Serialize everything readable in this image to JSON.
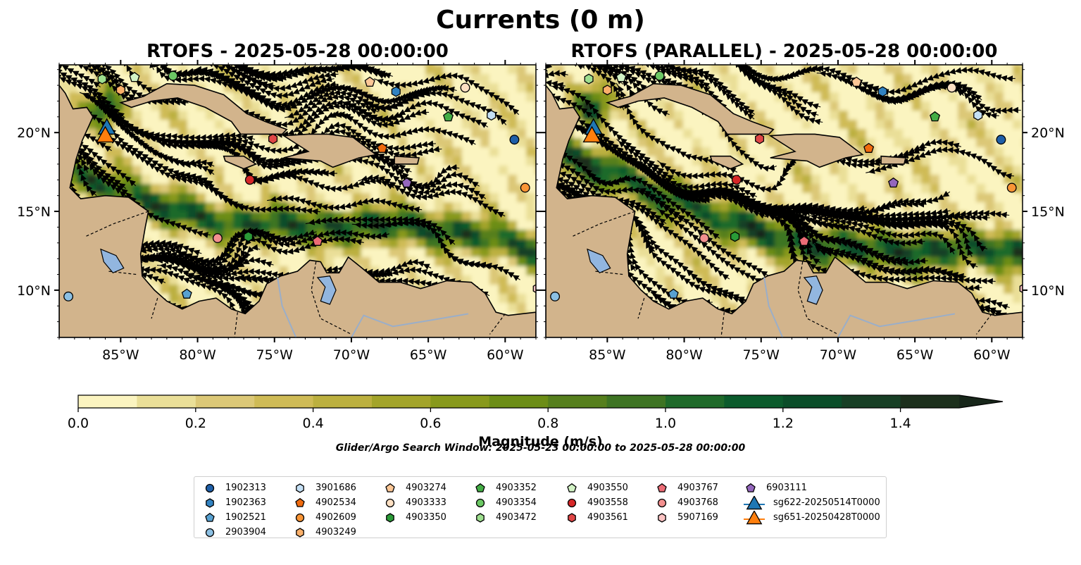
{
  "figure": {
    "suptitle": "Currents (0 m)",
    "panels": [
      {
        "title": "RTOFS - 2025-05-28 00:00:00"
      },
      {
        "title": "RTOFS (PARALLEL) - 2025-05-28 00:00:00"
      }
    ],
    "colorbar_label": "Magnitude (m/s)",
    "search_window": "Glider/Argo Search Window: 2025-05-23 00:00:00 to 2025-05-28 00:00:00"
  },
  "axes": {
    "lon_range": [
      -89.0,
      -58.0
    ],
    "lat_range": [
      7.0,
      24.3
    ],
    "lon_ticks": [
      -85,
      -80,
      -75,
      -70,
      -65,
      -60
    ],
    "lon_labels": [
      "85°W",
      "80°W",
      "75°W",
      "70°W",
      "65°W",
      "60°W"
    ],
    "lat_ticks": [
      20,
      15,
      10
    ],
    "lat_labels": [
      "20°N",
      "15°N",
      "10°N"
    ]
  },
  "colorbar": {
    "min": 0.0,
    "max": 1.5,
    "step": 0.1,
    "extend": "max",
    "ticks": [
      0.0,
      0.2,
      0.4,
      0.6,
      0.8,
      1.0,
      1.2,
      1.4
    ],
    "tick_labels": [
      "0.0",
      "0.2",
      "0.4",
      "0.6",
      "0.8",
      "1.0",
      "1.2",
      "1.4"
    ],
    "colors": [
      "#fbf4c0",
      "#eadf98",
      "#dcc877",
      "#cfbb56",
      "#bcb03f",
      "#a3a42a",
      "#88991c",
      "#6c8d16",
      "#567f1d",
      "#3e7423",
      "#1f6a2a",
      "#0b5b2c",
      "#0a4d29",
      "#173f25",
      "#1c2f1c"
    ],
    "extend_color": "#17261a"
  },
  "colors": {
    "land": "#d2b48c",
    "lake": "#92b6df",
    "river": "#9aaec9",
    "ocean_low": "#f3e8b0",
    "jet_high": "#2f6c22"
  },
  "markers": {
    "panel1": [
      {
        "id": "1902313",
        "lon": -59.4,
        "lat": 19.55
      },
      {
        "id": "1902363",
        "lon": -67.1,
        "lat": 22.6
      },
      {
        "id": "1902521",
        "lon": -80.7,
        "lat": 9.75
      },
      {
        "id": "2903904",
        "lon": -88.4,
        "lat": 9.6
      },
      {
        "id": "3901686",
        "lon": -60.9,
        "lat": 21.1
      },
      {
        "id": "4902534",
        "lon": -68.0,
        "lat": 19.0
      },
      {
        "id": "4902609",
        "lon": -58.7,
        "lat": 16.5
      },
      {
        "id": "4903249",
        "lon": -85.0,
        "lat": 22.7
      },
      {
        "id": "4903274",
        "lon": -68.8,
        "lat": 23.2
      },
      {
        "id": "4903333",
        "lon": -62.6,
        "lat": 22.85
      },
      {
        "id": "4903350",
        "lon": -76.7,
        "lat": 13.4
      },
      {
        "id": "4903352",
        "lon": -63.7,
        "lat": 21.0
      },
      {
        "id": "4903354",
        "lon": -81.6,
        "lat": 23.6
      },
      {
        "id": "4903472",
        "lon": -86.2,
        "lat": 23.4
      },
      {
        "id": "4903550",
        "lon": -84.1,
        "lat": 23.5
      },
      {
        "id": "4903558",
        "lon": -76.6,
        "lat": 17.0
      },
      {
        "id": "4903561",
        "lon": -75.1,
        "lat": 19.6
      },
      {
        "id": "4903767",
        "lon": -72.2,
        "lat": 13.1
      },
      {
        "id": "4903768",
        "lon": -78.7,
        "lat": 13.3
      },
      {
        "id": "5907169",
        "lon": -57.9,
        "lat": 10.1
      },
      {
        "id": "6903111",
        "lon": -66.4,
        "lat": 16.8
      },
      {
        "id": "sg622-20250514T0000",
        "lon": -85.9,
        "lat": 20.3,
        "glider": true
      },
      {
        "id": "sg651-20250428T0000",
        "lon": -86.0,
        "lat": 19.8,
        "glider": true
      }
    ],
    "panel2": [
      {
        "id": "1902313",
        "lon": -59.4,
        "lat": 19.55
      },
      {
        "id": "1902363",
        "lon": -67.1,
        "lat": 22.6
      },
      {
        "id": "1902521",
        "lon": -80.7,
        "lat": 9.75
      },
      {
        "id": "2903904",
        "lon": -88.4,
        "lat": 9.6
      },
      {
        "id": "3901686",
        "lon": -60.9,
        "lat": 21.1
      },
      {
        "id": "4902534",
        "lon": -68.0,
        "lat": 19.0
      },
      {
        "id": "4902609",
        "lon": -58.7,
        "lat": 16.5
      },
      {
        "id": "4903249",
        "lon": -85.0,
        "lat": 22.7
      },
      {
        "id": "4903274",
        "lon": -68.8,
        "lat": 23.2
      },
      {
        "id": "4903333",
        "lon": -62.6,
        "lat": 22.85
      },
      {
        "id": "4903350",
        "lon": -76.7,
        "lat": 13.4
      },
      {
        "id": "4903352",
        "lon": -63.7,
        "lat": 21.0
      },
      {
        "id": "4903354",
        "lon": -81.6,
        "lat": 23.6
      },
      {
        "id": "4903472",
        "lon": -86.2,
        "lat": 23.4
      },
      {
        "id": "4903550",
        "lon": -84.1,
        "lat": 23.5
      },
      {
        "id": "4903558",
        "lon": -76.6,
        "lat": 17.0
      },
      {
        "id": "4903561",
        "lon": -75.1,
        "lat": 19.6
      },
      {
        "id": "4903767",
        "lon": -72.2,
        "lat": 13.1
      },
      {
        "id": "4903768",
        "lon": -78.7,
        "lat": 13.3
      },
      {
        "id": "5907169",
        "lon": -57.9,
        "lat": 10.1
      },
      {
        "id": "6903111",
        "lon": -66.4,
        "lat": 16.8
      },
      {
        "id": "sg622-20250514T0000",
        "lon": -85.9,
        "lat": 20.3,
        "glider": true
      },
      {
        "id": "sg651-20250428T0000",
        "lon": -86.0,
        "lat": 19.8,
        "glider": true
      }
    ]
  },
  "legend": {
    "columns": [
      [
        {
          "label": "1902313",
          "shape": "circle",
          "color": "#1f5fa8"
        },
        {
          "label": "1902363",
          "shape": "hexagon",
          "color": "#3283c2"
        },
        {
          "label": "1902521",
          "shape": "pentagon",
          "color": "#58a1d1"
        },
        {
          "label": "2903904",
          "shape": "circle",
          "color": "#8cc0e3"
        }
      ],
      [
        {
          "label": "3901686",
          "shape": "hexagon",
          "color": "#c5e0f5"
        },
        {
          "label": "4902534",
          "shape": "pentagon",
          "color": "#f06b0e"
        },
        {
          "label": "4902609",
          "shape": "circle",
          "color": "#f99536"
        },
        {
          "label": "4903249",
          "shape": "hexagon",
          "color": "#fab06a"
        }
      ],
      [
        {
          "label": "4903274",
          "shape": "pentagon",
          "color": "#fcc796"
        },
        {
          "label": "4903333",
          "shape": "circle",
          "color": "#fde0c3"
        },
        {
          "label": "4903350",
          "shape": "hexagon",
          "color": "#2a9a37"
        }
      ],
      [
        {
          "label": "4903352",
          "shape": "pentagon",
          "color": "#43ad45"
        },
        {
          "label": "4903354",
          "shape": "circle",
          "color": "#6cc864"
        },
        {
          "label": "4903472",
          "shape": "hexagon",
          "color": "#9edf8f"
        }
      ],
      [
        {
          "label": "4903550",
          "shape": "pentagon",
          "color": "#d3f3c6"
        },
        {
          "label": "4903558",
          "shape": "circle",
          "color": "#d62728"
        },
        {
          "label": "4903561",
          "shape": "hexagon",
          "color": "#e04646"
        }
      ],
      [
        {
          "label": "4903767",
          "shape": "pentagon",
          "color": "#ec6c76"
        },
        {
          "label": "4903768",
          "shape": "circle",
          "color": "#f3908f"
        },
        {
          "label": "5907169",
          "shape": "hexagon",
          "color": "#fbc3c3"
        }
      ],
      [
        {
          "label": "6903111",
          "shape": "pentagon",
          "color": "#9467bd"
        },
        {
          "label": "sg622-20250514T0000",
          "shape": "glider",
          "color": "#1f77b4"
        },
        {
          "label": "sg651-20250428T0000",
          "shape": "glider",
          "color": "#ff7f0e"
        }
      ]
    ]
  }
}
